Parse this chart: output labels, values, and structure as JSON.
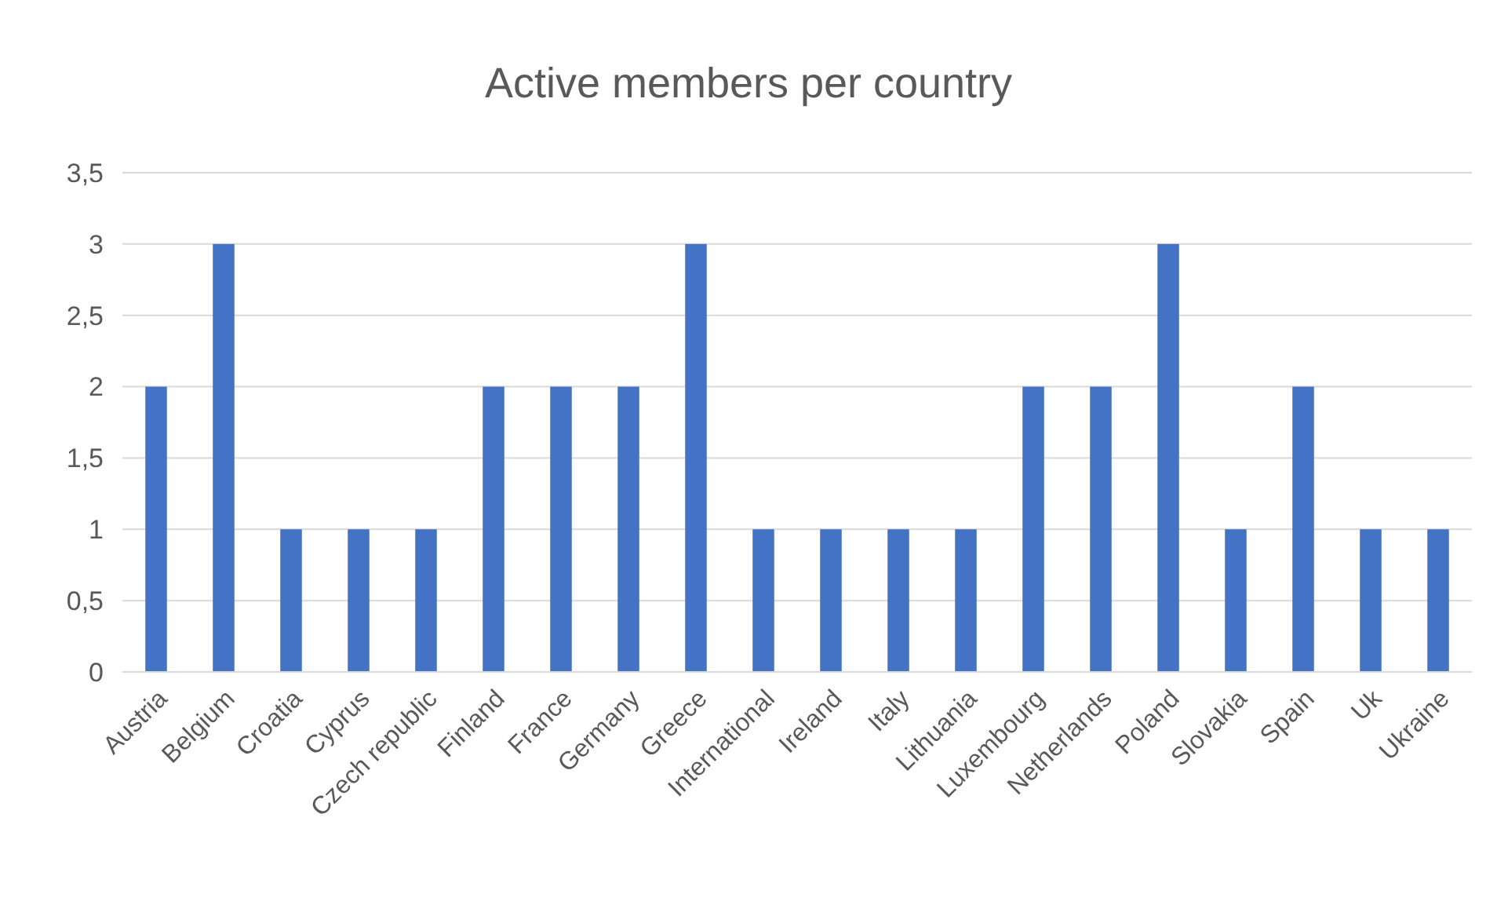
{
  "chart_data": {
    "type": "bar",
    "title": "Active members per country",
    "categories": [
      "Austria",
      "Belgium",
      "Croatia",
      "Cyprus",
      "Czech republic",
      "Finland",
      "France",
      "Germany",
      "Greece",
      "International",
      "Ireland",
      "Italy",
      "Lithuania",
      "Luxembourg",
      "Netherlands",
      "Poland",
      "Slovakia",
      "Spain",
      "Uk",
      "Ukraine"
    ],
    "values": [
      2,
      3,
      1,
      1,
      1,
      2,
      2,
      2,
      3,
      1,
      1,
      1,
      1,
      2,
      2,
      3,
      1,
      2,
      1,
      1
    ],
    "color": "#4472c4",
    "ylim": [
      0,
      3.5
    ],
    "yticks": [
      0,
      {
        "value": 0.5,
        "label": "0,5"
      },
      1,
      {
        "value": 1.5,
        "label": "1,5"
      },
      2,
      {
        "value": 2.5,
        "label": "2,5"
      },
      3,
      {
        "value": 3.5,
        "label": "3,5"
      }
    ],
    "grid": "y"
  }
}
